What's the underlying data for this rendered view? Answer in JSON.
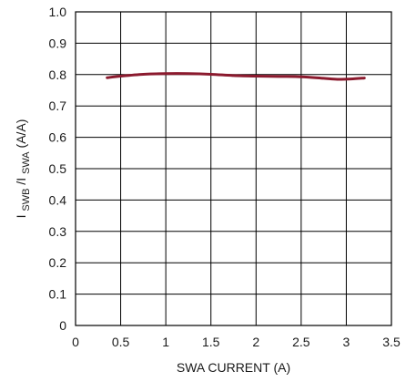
{
  "chart_data": {
    "type": "line",
    "title": "",
    "xlabel": "SWA CURRENT (A)",
    "ylabel": {
      "main": "I",
      "sub1": "SWB",
      "slash": "/I",
      "sub2": "SWA",
      "unit": " (A/A)"
    },
    "xlim": [
      0,
      3.5
    ],
    "ylim": [
      0,
      1.0
    ],
    "xticks": [
      "0",
      "0.5",
      "1",
      "1.5",
      "2",
      "2.5",
      "3",
      "3.5"
    ],
    "yticks": [
      "0",
      "0.1",
      "0.2",
      "0.3",
      "0.4",
      "0.5",
      "0.6",
      "0.7",
      "0.8",
      "0.9",
      "1.0"
    ],
    "grid": true,
    "series": [
      {
        "color": "#8b1a2e",
        "x": [
          0.35,
          0.5,
          0.75,
          1.0,
          1.25,
          1.5,
          1.75,
          2.0,
          2.25,
          2.5,
          2.75,
          2.9,
          3.05,
          3.2
        ],
        "y": [
          0.79,
          0.795,
          0.801,
          0.803,
          0.803,
          0.801,
          0.797,
          0.795,
          0.794,
          0.793,
          0.788,
          0.785,
          0.786,
          0.789
        ]
      }
    ]
  }
}
